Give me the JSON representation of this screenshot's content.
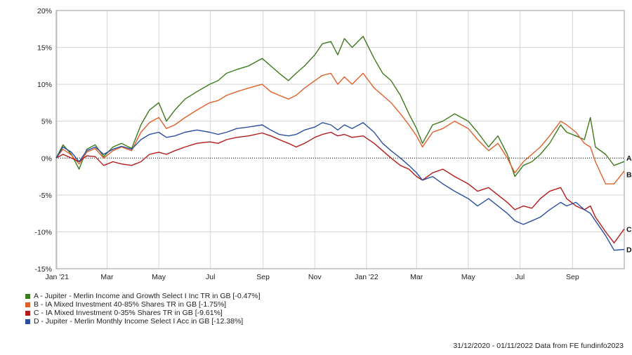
{
  "chart_data": {
    "type": "line",
    "x_tick_labels": [
      "Jan '21",
      "Mar",
      "May",
      "Jul",
      "Sep",
      "Nov",
      "Jan '22",
      "Mar",
      "May",
      "Jul",
      "Sep"
    ],
    "x_tick_dates": [
      "2021-01-01",
      "2021-03-01",
      "2021-05-01",
      "2021-07-01",
      "2021-09-01",
      "2021-11-01",
      "2022-01-01",
      "2022-03-01",
      "2022-05-01",
      "2022-07-01",
      "2022-09-01"
    ],
    "x_range": [
      "2020-12-31",
      "2022-11-01"
    ],
    "y_tick_labels": [
      "-15%",
      "-10%",
      "-5%",
      "0%",
      "5%",
      "10%",
      "15%",
      "20%"
    ],
    "y_ticks": [
      -15,
      -10,
      -5,
      0,
      5,
      10,
      15,
      20
    ],
    "ylim": [
      -15,
      20
    ],
    "grid": true,
    "legend_placement": "bottom-left",
    "footer": "31/12/2020 - 01/11/2022 Data from FE fundinfo2023",
    "series": [
      {
        "end_label": "A",
        "name": "A - Jupiter - Merlin Income and Growth Select I Inc TR in GB [-0.47%]",
        "color": "#3d7a1c",
        "points": [
          [
            "2020-12-31",
            0
          ],
          [
            "2021-01-08",
            1.8
          ],
          [
            "2021-01-18",
            0.5
          ],
          [
            "2021-01-27",
            -1.5
          ],
          [
            "2021-02-05",
            1.2
          ],
          [
            "2021-02-15",
            1.8
          ],
          [
            "2021-02-25",
            0.2
          ],
          [
            "2021-03-08",
            1.5
          ],
          [
            "2021-03-18",
            2.0
          ],
          [
            "2021-03-30",
            1.3
          ],
          [
            "2021-04-10",
            4.5
          ],
          [
            "2021-04-20",
            6.5
          ],
          [
            "2021-05-01",
            7.5
          ],
          [
            "2021-05-10",
            5.0
          ],
          [
            "2021-05-20",
            6.5
          ],
          [
            "2021-06-01",
            8.0
          ],
          [
            "2021-06-15",
            9.0
          ],
          [
            "2021-06-30",
            10.0
          ],
          [
            "2021-07-10",
            10.5
          ],
          [
            "2021-07-20",
            11.5
          ],
          [
            "2021-08-01",
            12.0
          ],
          [
            "2021-08-15",
            12.5
          ],
          [
            "2021-08-31",
            13.5
          ],
          [
            "2021-09-10",
            12.5
          ],
          [
            "2021-09-20",
            11.5
          ],
          [
            "2021-10-01",
            10.5
          ],
          [
            "2021-10-10",
            11.5
          ],
          [
            "2021-10-20",
            12.5
          ],
          [
            "2021-11-01",
            14.0
          ],
          [
            "2021-11-10",
            15.5
          ],
          [
            "2021-11-20",
            15.8
          ],
          [
            "2021-11-28",
            14.0
          ],
          [
            "2021-12-06",
            16.2
          ],
          [
            "2021-12-15",
            15.0
          ],
          [
            "2021-12-28",
            16.5
          ],
          [
            "2022-01-10",
            13.5
          ],
          [
            "2022-01-20",
            11.5
          ],
          [
            "2022-01-30",
            10.5
          ],
          [
            "2022-02-10",
            8.5
          ],
          [
            "2022-02-20",
            6.0
          ],
          [
            "2022-03-01",
            4.0
          ],
          [
            "2022-03-08",
            2.0
          ],
          [
            "2022-03-20",
            4.5
          ],
          [
            "2022-04-01",
            5.0
          ],
          [
            "2022-04-15",
            6.0
          ],
          [
            "2022-05-01",
            5.0
          ],
          [
            "2022-05-12",
            3.5
          ],
          [
            "2022-05-25",
            1.5
          ],
          [
            "2022-06-05",
            3.0
          ],
          [
            "2022-06-16",
            0.5
          ],
          [
            "2022-06-25",
            -2.5
          ],
          [
            "2022-07-05",
            -1.0
          ],
          [
            "2022-07-15",
            -0.5
          ],
          [
            "2022-07-25",
            0.5
          ],
          [
            "2022-08-05",
            2.0
          ],
          [
            "2022-08-18",
            4.5
          ],
          [
            "2022-08-25",
            3.5
          ],
          [
            "2022-09-05",
            3.0
          ],
          [
            "2022-09-15",
            2.5
          ],
          [
            "2022-09-22",
            5.5
          ],
          [
            "2022-09-28",
            1.5
          ],
          [
            "2022-10-10",
            0.5
          ],
          [
            "2022-10-20",
            -1.0
          ],
          [
            "2022-11-01",
            -0.47
          ]
        ]
      },
      {
        "end_label": "B",
        "name": "B - IA Mixed Investment 40-85% Shares TR in GB [-1.75%]",
        "color": "#e0602a",
        "points": [
          [
            "2020-12-31",
            0
          ],
          [
            "2021-01-08",
            1.2
          ],
          [
            "2021-01-18",
            0.4
          ],
          [
            "2021-01-27",
            -0.8
          ],
          [
            "2021-02-05",
            0.8
          ],
          [
            "2021-02-15",
            1.3
          ],
          [
            "2021-02-25",
            0.0
          ],
          [
            "2021-03-08",
            1.0
          ],
          [
            "2021-03-18",
            1.5
          ],
          [
            "2021-03-30",
            1.0
          ],
          [
            "2021-04-10",
            3.5
          ],
          [
            "2021-04-20",
            4.8
          ],
          [
            "2021-05-01",
            5.5
          ],
          [
            "2021-05-10",
            4.0
          ],
          [
            "2021-05-20",
            4.5
          ],
          [
            "2021-06-01",
            5.5
          ],
          [
            "2021-06-15",
            6.5
          ],
          [
            "2021-06-30",
            7.5
          ],
          [
            "2021-07-10",
            7.8
          ],
          [
            "2021-07-20",
            8.5
          ],
          [
            "2021-08-01",
            9.0
          ],
          [
            "2021-08-15",
            9.5
          ],
          [
            "2021-08-31",
            10.0
          ],
          [
            "2021-09-10",
            9.0
          ],
          [
            "2021-09-20",
            8.5
          ],
          [
            "2021-10-01",
            8.0
          ],
          [
            "2021-10-10",
            8.5
          ],
          [
            "2021-10-20",
            9.5
          ],
          [
            "2021-11-01",
            10.5
          ],
          [
            "2021-11-10",
            11.2
          ],
          [
            "2021-11-20",
            11.5
          ],
          [
            "2021-11-28",
            10.0
          ],
          [
            "2021-12-06",
            11.0
          ],
          [
            "2021-12-15",
            10.0
          ],
          [
            "2021-12-28",
            11.5
          ],
          [
            "2022-01-10",
            9.5
          ],
          [
            "2022-01-20",
            8.5
          ],
          [
            "2022-01-30",
            7.5
          ],
          [
            "2022-02-10",
            6.0
          ],
          [
            "2022-02-20",
            4.5
          ],
          [
            "2022-03-01",
            3.0
          ],
          [
            "2022-03-08",
            1.5
          ],
          [
            "2022-03-20",
            3.5
          ],
          [
            "2022-04-01",
            4.0
          ],
          [
            "2022-04-15",
            5.0
          ],
          [
            "2022-05-01",
            4.0
          ],
          [
            "2022-05-12",
            2.5
          ],
          [
            "2022-05-25",
            1.0
          ],
          [
            "2022-06-05",
            2.0
          ],
          [
            "2022-06-16",
            0.0
          ],
          [
            "2022-06-25",
            -2.0
          ],
          [
            "2022-07-05",
            -0.5
          ],
          [
            "2022-07-15",
            0.5
          ],
          [
            "2022-07-25",
            1.5
          ],
          [
            "2022-08-05",
            3.0
          ],
          [
            "2022-08-18",
            5.0
          ],
          [
            "2022-08-25",
            4.5
          ],
          [
            "2022-09-05",
            3.5
          ],
          [
            "2022-09-15",
            2.0
          ],
          [
            "2022-09-22",
            1.5
          ],
          [
            "2022-09-28",
            -0.5
          ],
          [
            "2022-10-10",
            -3.5
          ],
          [
            "2022-10-20",
            -3.5
          ],
          [
            "2022-11-01",
            -1.75
          ]
        ]
      },
      {
        "end_label": "C",
        "name": "C - IA Mixed Investment 0-35% Shares TR in GB [-9.61%]",
        "color": "#b41a1a",
        "points": [
          [
            "2020-12-31",
            0
          ],
          [
            "2021-01-08",
            0.5
          ],
          [
            "2021-01-18",
            0.0
          ],
          [
            "2021-01-27",
            -0.5
          ],
          [
            "2021-02-05",
            0.3
          ],
          [
            "2021-02-15",
            0.2
          ],
          [
            "2021-02-25",
            -1.0
          ],
          [
            "2021-03-08",
            -0.5
          ],
          [
            "2021-03-18",
            -0.8
          ],
          [
            "2021-03-30",
            -1.0
          ],
          [
            "2021-04-10",
            -0.5
          ],
          [
            "2021-04-20",
            0.5
          ],
          [
            "2021-05-01",
            0.8
          ],
          [
            "2021-05-10",
            0.5
          ],
          [
            "2021-05-20",
            1.0
          ],
          [
            "2021-06-01",
            1.5
          ],
          [
            "2021-06-15",
            2.0
          ],
          [
            "2021-06-30",
            2.2
          ],
          [
            "2021-07-10",
            2.0
          ],
          [
            "2021-07-20",
            2.5
          ],
          [
            "2021-08-01",
            2.8
          ],
          [
            "2021-08-15",
            3.0
          ],
          [
            "2021-08-31",
            3.4
          ],
          [
            "2021-09-10",
            3.0
          ],
          [
            "2021-09-20",
            2.5
          ],
          [
            "2021-10-01",
            2.0
          ],
          [
            "2021-10-10",
            1.5
          ],
          [
            "2021-10-20",
            2.0
          ],
          [
            "2021-11-01",
            2.8
          ],
          [
            "2021-11-10",
            3.2
          ],
          [
            "2021-11-20",
            3.5
          ],
          [
            "2021-11-28",
            3.0
          ],
          [
            "2021-12-06",
            3.2
          ],
          [
            "2021-12-15",
            2.8
          ],
          [
            "2021-12-28",
            3.0
          ],
          [
            "2022-01-10",
            2.0
          ],
          [
            "2022-01-20",
            1.0
          ],
          [
            "2022-01-30",
            0.0
          ],
          [
            "2022-02-10",
            -1.0
          ],
          [
            "2022-02-20",
            -1.5
          ],
          [
            "2022-03-01",
            -2.5
          ],
          [
            "2022-03-08",
            -3.0
          ],
          [
            "2022-03-20",
            -2.0
          ],
          [
            "2022-04-01",
            -1.5
          ],
          [
            "2022-04-15",
            -2.5
          ],
          [
            "2022-05-01",
            -3.5
          ],
          [
            "2022-05-12",
            -4.5
          ],
          [
            "2022-05-25",
            -4.0
          ],
          [
            "2022-06-05",
            -5.0
          ],
          [
            "2022-06-16",
            -6.0
          ],
          [
            "2022-06-25",
            -7.0
          ],
          [
            "2022-07-05",
            -6.5
          ],
          [
            "2022-07-15",
            -6.8
          ],
          [
            "2022-07-25",
            -5.5
          ],
          [
            "2022-08-05",
            -4.5
          ],
          [
            "2022-08-18",
            -4.0
          ],
          [
            "2022-08-25",
            -5.5
          ],
          [
            "2022-09-05",
            -6.5
          ],
          [
            "2022-09-15",
            -7.0
          ],
          [
            "2022-09-22",
            -6.5
          ],
          [
            "2022-09-28",
            -8.0
          ],
          [
            "2022-10-10",
            -10.0
          ],
          [
            "2022-10-20",
            -11.5
          ],
          [
            "2022-11-01",
            -9.61
          ]
        ]
      },
      {
        "end_label": "D",
        "name": "D - Jupiter - Merlin Monthly Income Select I Acc in GB [-12.38%]",
        "color": "#2a4fa0",
        "points": [
          [
            "2020-12-31",
            0
          ],
          [
            "2021-01-08",
            1.5
          ],
          [
            "2021-01-18",
            0.8
          ],
          [
            "2021-01-27",
            -0.5
          ],
          [
            "2021-02-05",
            1.0
          ],
          [
            "2021-02-15",
            1.5
          ],
          [
            "2021-02-25",
            0.5
          ],
          [
            "2021-03-08",
            1.2
          ],
          [
            "2021-03-18",
            1.6
          ],
          [
            "2021-03-30",
            1.2
          ],
          [
            "2021-04-10",
            2.5
          ],
          [
            "2021-04-20",
            3.2
          ],
          [
            "2021-05-01",
            3.5
          ],
          [
            "2021-05-10",
            2.8
          ],
          [
            "2021-05-20",
            3.0
          ],
          [
            "2021-06-01",
            3.5
          ],
          [
            "2021-06-15",
            3.8
          ],
          [
            "2021-06-30",
            3.5
          ],
          [
            "2021-07-10",
            3.2
          ],
          [
            "2021-07-20",
            3.5
          ],
          [
            "2021-08-01",
            4.0
          ],
          [
            "2021-08-15",
            4.2
          ],
          [
            "2021-08-31",
            4.5
          ],
          [
            "2021-09-10",
            3.8
          ],
          [
            "2021-09-20",
            3.2
          ],
          [
            "2021-10-01",
            3.0
          ],
          [
            "2021-10-10",
            3.2
          ],
          [
            "2021-10-20",
            3.8
          ],
          [
            "2021-11-01",
            4.2
          ],
          [
            "2021-11-10",
            4.8
          ],
          [
            "2021-11-20",
            4.5
          ],
          [
            "2021-11-28",
            3.8
          ],
          [
            "2021-12-06",
            4.5
          ],
          [
            "2021-12-15",
            4.0
          ],
          [
            "2021-12-28",
            4.8
          ],
          [
            "2022-01-10",
            3.5
          ],
          [
            "2022-01-20",
            2.0
          ],
          [
            "2022-01-30",
            1.0
          ],
          [
            "2022-02-10",
            0.0
          ],
          [
            "2022-02-20",
            -1.0
          ],
          [
            "2022-03-01",
            -2.0
          ],
          [
            "2022-03-08",
            -3.0
          ],
          [
            "2022-03-20",
            -2.5
          ],
          [
            "2022-04-01",
            -3.5
          ],
          [
            "2022-04-15",
            -4.5
          ],
          [
            "2022-05-01",
            -5.5
          ],
          [
            "2022-05-12",
            -6.5
          ],
          [
            "2022-05-25",
            -5.5
          ],
          [
            "2022-06-05",
            -6.5
          ],
          [
            "2022-06-16",
            -7.5
          ],
          [
            "2022-06-25",
            -8.5
          ],
          [
            "2022-07-05",
            -9.0
          ],
          [
            "2022-07-15",
            -8.5
          ],
          [
            "2022-07-25",
            -8.0
          ],
          [
            "2022-08-05",
            -7.0
          ],
          [
            "2022-08-18",
            -6.0
          ],
          [
            "2022-08-25",
            -6.5
          ],
          [
            "2022-09-05",
            -6.0
          ],
          [
            "2022-09-15",
            -7.0
          ],
          [
            "2022-09-22",
            -7.5
          ],
          [
            "2022-09-28",
            -8.5
          ],
          [
            "2022-10-10",
            -10.5
          ],
          [
            "2022-10-20",
            -12.5
          ],
          [
            "2022-11-01",
            -12.38
          ]
        ]
      }
    ]
  }
}
